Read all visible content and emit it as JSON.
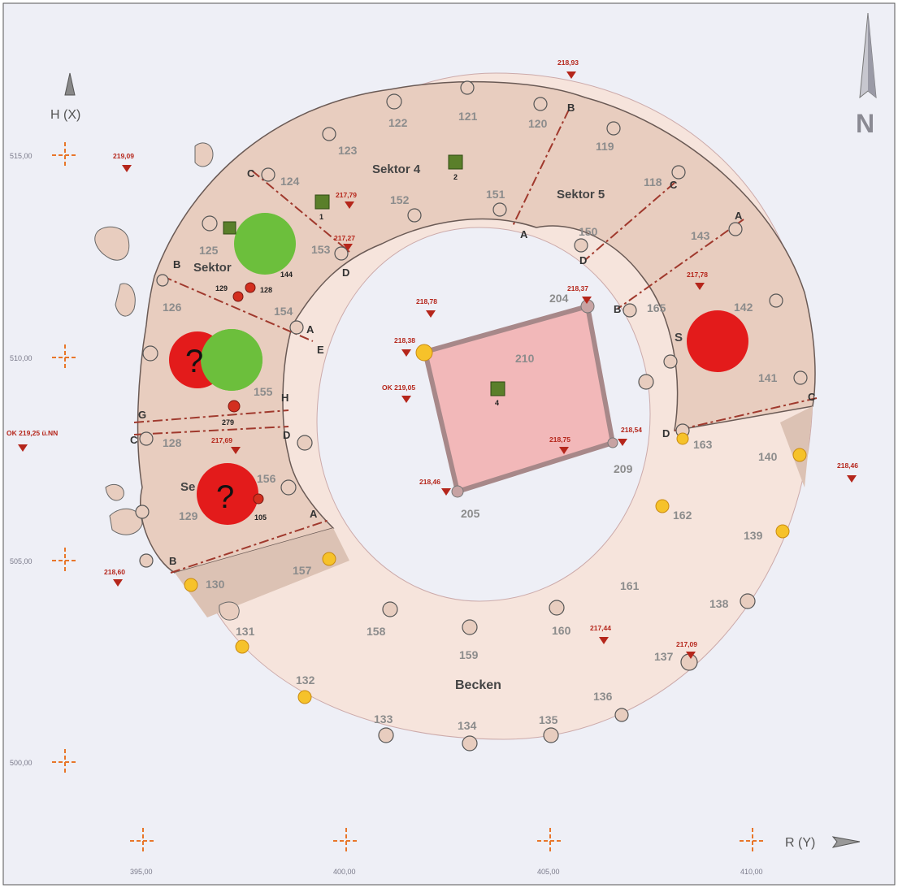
{
  "north_label": "N",
  "axes": {
    "h_label": "H (X)",
    "r_label": "R (Y)",
    "h_ticks": [
      "515,00",
      "510,00",
      "505,00",
      "500,00"
    ],
    "r_ticks": [
      "395,00",
      "400,00",
      "405,00",
      "410,00"
    ]
  },
  "reference_level": "OK 219,25 ü.NN",
  "sectors": [
    "Sektor 4",
    "Sektor 5",
    "Sektor",
    "S",
    "Se"
  ],
  "basin_label": "Becken",
  "stone_numbers": [
    "121",
    "122",
    "123",
    "124",
    "125",
    "126",
    "128",
    "129",
    "130",
    "131",
    "132",
    "133",
    "134",
    "135",
    "136",
    "137",
    "138",
    "139",
    "140",
    "141",
    "142",
    "143",
    "144",
    "150",
    "151",
    "152",
    "153",
    "154",
    "155",
    "156",
    "157",
    "158",
    "159",
    "160",
    "161",
    "162",
    "163",
    "165",
    "204",
    "205",
    "209",
    "210",
    "118",
    "119",
    "120"
  ],
  "sector_letters": [
    "A",
    "B",
    "C",
    "D",
    "E",
    "H",
    "G"
  ],
  "elevations": [
    "218,93",
    "219,09",
    "217,79",
    "217,27",
    "218,78",
    "218,37",
    "217,78",
    "218,38",
    "OK 219,05",
    "218,75",
    "218,54",
    "218,46",
    "217,69",
    "218,46",
    "218,60",
    "217,44",
    "217,09"
  ],
  "small_markers": [
    "1",
    "2",
    "4",
    "129",
    "128",
    "279",
    "105"
  ],
  "question_mark": "?",
  "colors": {
    "stone_fill": "#e8cdbf",
    "basin_fill": "#f6e4dc",
    "platform_fill": "#f2b8b9",
    "platform_border": "#a78889",
    "red_marker": "#e31b1b",
    "green_marker": "#6cbf3c",
    "yellow_marker": "#f6c22a",
    "elevation_marker": "#b5261b",
    "grid_cross": "#e8762a"
  }
}
